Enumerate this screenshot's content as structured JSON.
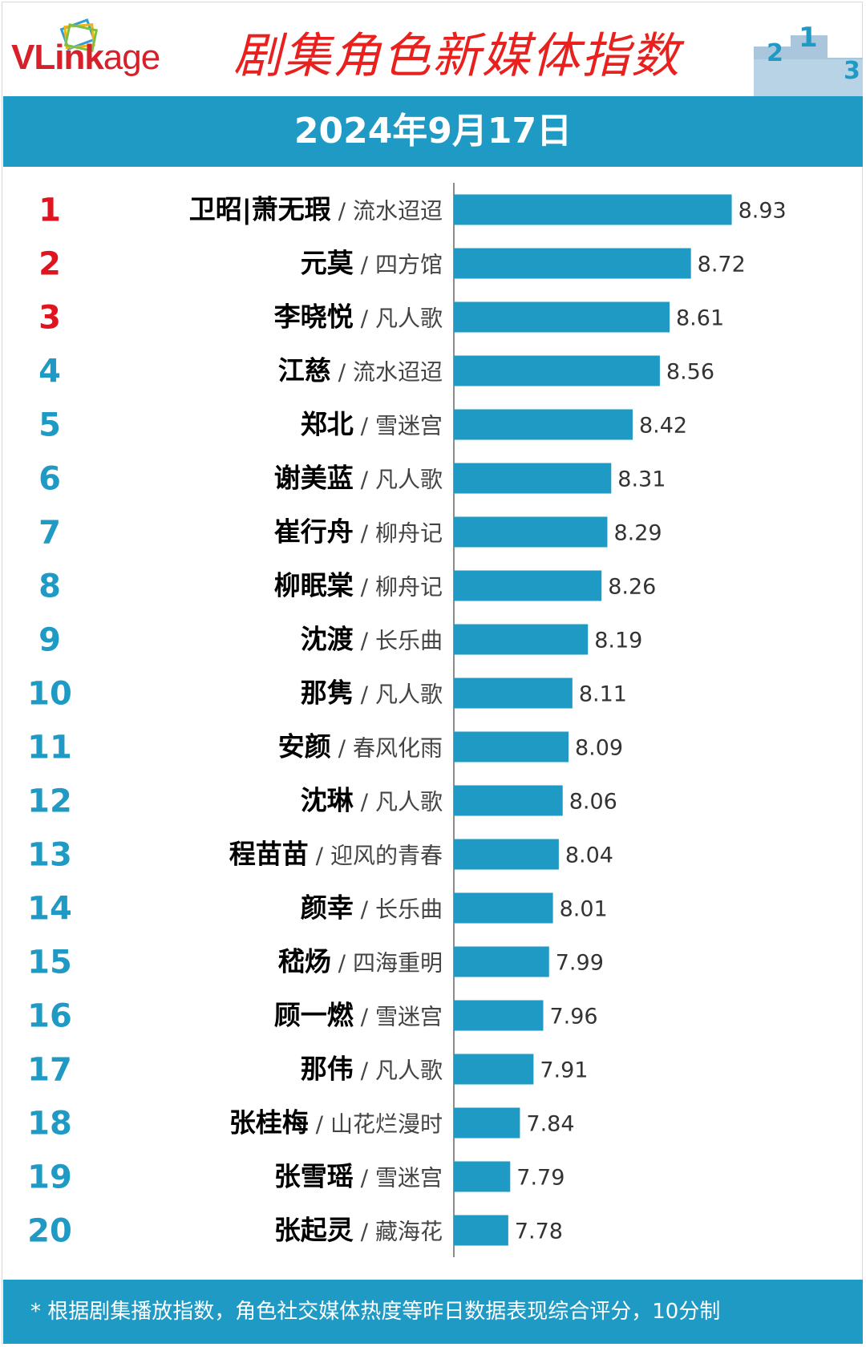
{
  "header": {
    "logo_text_bold": "VLink",
    "logo_text_light": "age",
    "title": "剧集角色新媒体指数",
    "date": "2024年9月17日"
  },
  "colors": {
    "bar": "#1e9ac4",
    "top_rank": "#e0141e",
    "rank": "#1e9ac4",
    "title": "#e8201e"
  },
  "chart_data": {
    "type": "bar",
    "orientation": "horizontal",
    "xlim": [
      7.5,
      9.2
    ],
    "categories": [
      {
        "rank": "1",
        "name": "卫昭|萧无瑕",
        "drama": "流水迢迢"
      },
      {
        "rank": "2",
        "name": "元莫",
        "drama": "四方馆"
      },
      {
        "rank": "3",
        "name": "李晓悦",
        "drama": "凡人歌"
      },
      {
        "rank": "4",
        "name": "江慈",
        "drama": "流水迢迢"
      },
      {
        "rank": "5",
        "name": "郑北",
        "drama": "雪迷宫"
      },
      {
        "rank": "6",
        "name": "谢美蓝",
        "drama": "凡人歌"
      },
      {
        "rank": "7",
        "name": "崔行舟",
        "drama": "柳舟记"
      },
      {
        "rank": "8",
        "name": "柳眠棠",
        "drama": "柳舟记"
      },
      {
        "rank": "9",
        "name": "沈渡",
        "drama": "长乐曲"
      },
      {
        "rank": "10",
        "name": "那隽",
        "drama": "凡人歌"
      },
      {
        "rank": "11",
        "name": "安颜",
        "drama": "春风化雨"
      },
      {
        "rank": "12",
        "name": "沈琳",
        "drama": "凡人歌"
      },
      {
        "rank": "13",
        "name": "程苗苗",
        "drama": "迎风的青春"
      },
      {
        "rank": "14",
        "name": "颜幸",
        "drama": "长乐曲"
      },
      {
        "rank": "15",
        "name": "嵇炀",
        "drama": "四海重明"
      },
      {
        "rank": "16",
        "name": "顾一燃",
        "drama": "雪迷宫"
      },
      {
        "rank": "17",
        "name": "那伟",
        "drama": "凡人歌"
      },
      {
        "rank": "18",
        "name": "张桂梅",
        "drama": "山花烂漫时"
      },
      {
        "rank": "19",
        "name": "张雪瑶",
        "drama": "雪迷宫"
      },
      {
        "rank": "20",
        "name": "张起灵",
        "drama": "藏海花"
      }
    ],
    "values": [
      8.93,
      8.72,
      8.61,
      8.56,
      8.42,
      8.31,
      8.29,
      8.26,
      8.19,
      8.11,
      8.09,
      8.06,
      8.04,
      8.01,
      7.99,
      7.96,
      7.91,
      7.84,
      7.79,
      7.78
    ],
    "value_labels": [
      "8.93",
      "8.72",
      "8.61",
      "8.56",
      "8.42",
      "8.31",
      "8.29",
      "8.26",
      "8.19",
      "8.11",
      "8.09",
      "8.06",
      "8.04",
      "8.01",
      "7.99",
      "7.96",
      "7.91",
      "7.84",
      "7.79",
      "7.78"
    ],
    "grid": false,
    "legend": "none"
  },
  "footer": {
    "note": "* 根据剧集播放指数，角色社交媒体热度等昨日数据表现综合评分，10分制"
  }
}
